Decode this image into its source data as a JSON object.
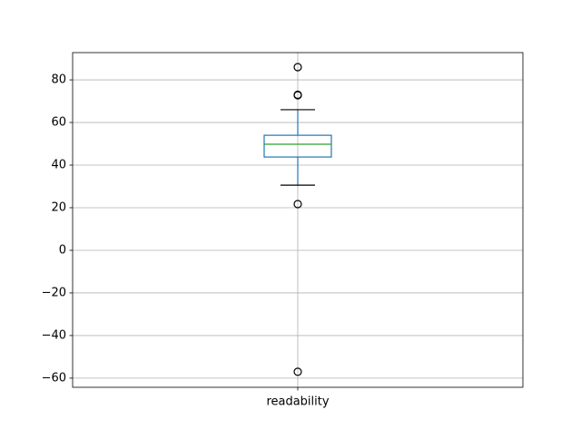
{
  "chart_data": {
    "type": "box",
    "categories": [
      "readability"
    ],
    "boxes": [
      {
        "whislo": 30.6,
        "q1": 43.8,
        "med": 49.8,
        "q3": 54.0,
        "whishi": 66.0,
        "fliers": [
          86.0,
          72.8,
          73.0,
          21.7,
          -57.0
        ]
      }
    ],
    "box_color": "#1f77b4",
    "median_color": "#2ca02c",
    "cap_color": "#000000",
    "flier_color": "#000000",
    "ylim": [
      -64.3,
      92.8
    ],
    "yticks": [
      {
        "value": -60,
        "label": "−60"
      },
      {
        "value": -40,
        "label": "−40"
      },
      {
        "value": -20,
        "label": "−20"
      },
      0,
      20,
      40,
      60,
      80
    ],
    "grid": true
  }
}
